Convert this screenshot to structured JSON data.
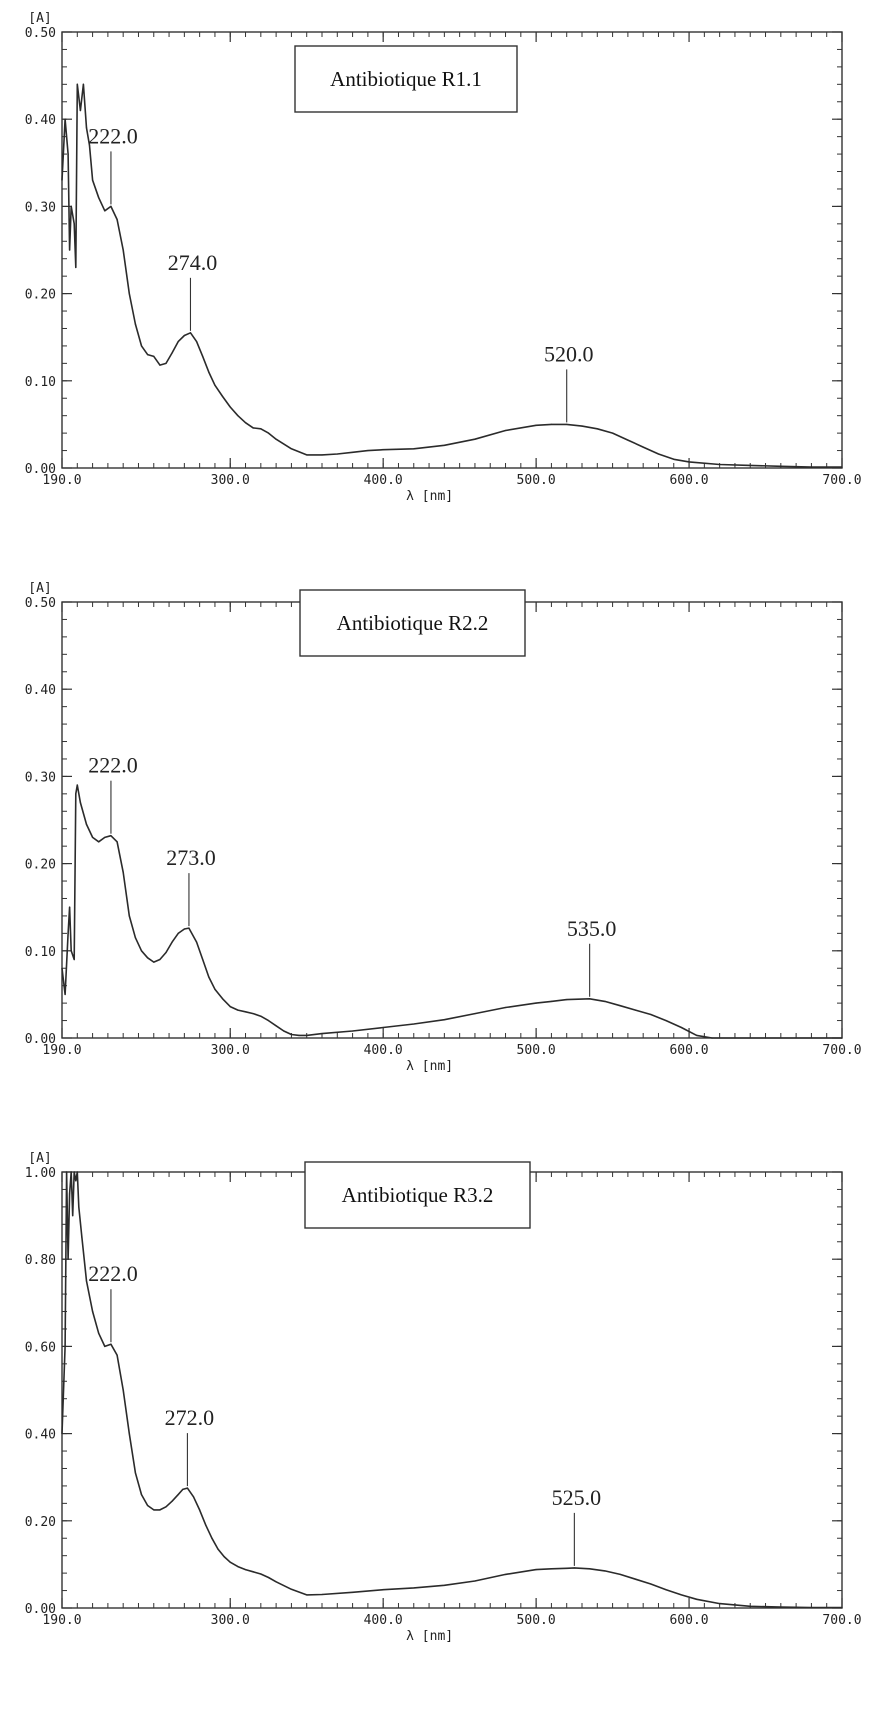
{
  "chart_data": [
    {
      "type": "line",
      "title": "Antibiotique R1.1",
      "xlabel": "λ [nm]",
      "ylabel": "[A]",
      "xlim": [
        190,
        700
      ],
      "ylim": [
        0,
        0.5
      ],
      "x_ticks": [
        190,
        300,
        400,
        500,
        600,
        700
      ],
      "x_tick_labels": [
        "190.0",
        "300.0",
        "400.0",
        "500.0",
        "600.0",
        "700.0"
      ],
      "y_ticks": [
        0,
        0.1,
        0.2,
        0.3,
        0.4,
        0.5
      ],
      "y_tick_labels": [
        "0.00",
        "0.10",
        "0.20",
        "0.30",
        "0.40",
        "0.50"
      ],
      "grid": false,
      "series": [
        {
          "x": [
            190,
            192,
            194,
            195,
            196,
            198,
            199,
            200,
            202,
            204,
            206,
            208,
            210,
            214,
            218,
            222,
            226,
            230,
            234,
            238,
            242,
            246,
            250,
            254,
            258,
            262,
            266,
            270,
            274,
            278,
            282,
            286,
            290,
            295,
            300,
            305,
            310,
            315,
            320,
            325,
            330,
            340,
            350,
            360,
            370,
            380,
            390,
            400,
            420,
            440,
            460,
            480,
            500,
            510,
            520,
            530,
            540,
            550,
            560,
            570,
            580,
            590,
            600,
            620,
            640,
            660,
            680,
            700
          ],
          "y": [
            0.33,
            0.4,
            0.36,
            0.25,
            0.3,
            0.28,
            0.23,
            0.44,
            0.41,
            0.44,
            0.39,
            0.37,
            0.33,
            0.31,
            0.295,
            0.3,
            0.285,
            0.25,
            0.2,
            0.165,
            0.14,
            0.13,
            0.128,
            0.118,
            0.12,
            0.132,
            0.145,
            0.152,
            0.155,
            0.145,
            0.128,
            0.11,
            0.095,
            0.082,
            0.07,
            0.06,
            0.052,
            0.046,
            0.045,
            0.04,
            0.033,
            0.022,
            0.015,
            0.015,
            0.016,
            0.018,
            0.02,
            0.021,
            0.022,
            0.026,
            0.033,
            0.043,
            0.049,
            0.05,
            0.05,
            0.048,
            0.045,
            0.04,
            0.032,
            0.024,
            0.016,
            0.01,
            0.007,
            0.004,
            0.003,
            0.002,
            0.001,
            0.001
          ]
        }
      ],
      "peaks": [
        {
          "x": 222,
          "y": 0.3,
          "label": "222.0"
        },
        {
          "x": 274,
          "y": 0.155,
          "label": "274.0"
        },
        {
          "x": 520,
          "y": 0.05,
          "label": "520.0"
        }
      ]
    },
    {
      "type": "line",
      "title": "Antibiotique R2.2",
      "xlabel": "λ [nm]",
      "ylabel": "[A]",
      "xlim": [
        190,
        700
      ],
      "ylim": [
        0,
        0.5
      ],
      "x_ticks": [
        190,
        300,
        400,
        500,
        600,
        700
      ],
      "x_tick_labels": [
        "190.0",
        "300.0",
        "400.0",
        "500.0",
        "600.0",
        "700.0"
      ],
      "y_ticks": [
        0,
        0.1,
        0.2,
        0.3,
        0.4,
        0.5
      ],
      "y_tick_labels": [
        "0.00",
        "0.10",
        "0.20",
        "0.30",
        "0.40",
        "0.50"
      ],
      "grid": false,
      "series": [
        {
          "x": [
            190,
            192,
            194,
            195,
            196,
            198,
            199,
            200,
            202,
            206,
            210,
            214,
            218,
            222,
            226,
            230,
            234,
            238,
            242,
            246,
            250,
            254,
            258,
            262,
            266,
            270,
            273,
            278,
            282,
            286,
            290,
            295,
            300,
            305,
            310,
            315,
            320,
            325,
            330,
            335,
            340,
            345,
            350,
            360,
            380,
            400,
            420,
            440,
            460,
            480,
            500,
            510,
            520,
            535,
            545,
            555,
            565,
            575,
            585,
            595,
            605,
            615,
            630,
            650,
            700
          ],
          "y": [
            0.08,
            0.05,
            0.12,
            0.15,
            0.1,
            0.09,
            0.28,
            0.29,
            0.27,
            0.245,
            0.23,
            0.225,
            0.23,
            0.232,
            0.225,
            0.19,
            0.14,
            0.115,
            0.1,
            0.092,
            0.087,
            0.09,
            0.098,
            0.11,
            0.12,
            0.125,
            0.126,
            0.11,
            0.09,
            0.07,
            0.056,
            0.045,
            0.036,
            0.032,
            0.03,
            0.028,
            0.025,
            0.02,
            0.014,
            0.008,
            0.004,
            0.003,
            0.003,
            0.005,
            0.008,
            0.012,
            0.016,
            0.021,
            0.028,
            0.035,
            0.04,
            0.042,
            0.044,
            0.045,
            0.042,
            0.037,
            0.032,
            0.027,
            0.02,
            0.012,
            0.003,
            0.0,
            0.0,
            0.0,
            0.0
          ]
        }
      ],
      "peaks": [
        {
          "x": 222,
          "y": 0.232,
          "label": "222.0"
        },
        {
          "x": 273,
          "y": 0.126,
          "label": "273.0"
        },
        {
          "x": 535,
          "y": 0.045,
          "label": "535.0"
        }
      ]
    },
    {
      "type": "line",
      "title": "Antibiotique R3.2",
      "xlabel": "λ [nm]",
      "ylabel": "[A]",
      "xlim": [
        190,
        700
      ],
      "ylim": [
        0,
        1.0
      ],
      "x_ticks": [
        190,
        300,
        400,
        500,
        600,
        700
      ],
      "x_tick_labels": [
        "190.0",
        "300.0",
        "400.0",
        "500.0",
        "600.0",
        "700.0"
      ],
      "y_ticks": [
        0,
        0.2,
        0.4,
        0.6,
        0.8,
        1.0
      ],
      "y_tick_labels": [
        "0.00",
        "0.20",
        "0.40",
        "0.60",
        "0.80",
        "1.00"
      ],
      "grid": false,
      "series": [
        {
          "x": [
            190,
            192,
            193,
            194,
            195,
            196,
            197,
            198,
            199,
            200,
            201,
            203,
            206,
            210,
            214,
            218,
            222,
            226,
            230,
            234,
            238,
            242,
            246,
            250,
            254,
            258,
            262,
            266,
            269,
            272,
            276,
            280,
            284,
            288,
            292,
            296,
            300,
            305,
            310,
            315,
            320,
            325,
            330,
            340,
            350,
            360,
            380,
            400,
            420,
            440,
            460,
            480,
            500,
            510,
            520,
            525,
            535,
            545,
            555,
            565,
            575,
            585,
            595,
            605,
            620,
            640,
            660,
            680,
            700
          ],
          "y": [
            0.4,
            0.6,
            1.0,
            0.8,
            0.95,
            1.0,
            0.9,
            1.0,
            0.98,
            1.0,
            0.92,
            0.85,
            0.75,
            0.68,
            0.63,
            0.6,
            0.605,
            0.58,
            0.5,
            0.4,
            0.31,
            0.26,
            0.235,
            0.225,
            0.225,
            0.232,
            0.245,
            0.26,
            0.272,
            0.275,
            0.255,
            0.225,
            0.19,
            0.16,
            0.135,
            0.118,
            0.105,
            0.095,
            0.088,
            0.083,
            0.078,
            0.07,
            0.06,
            0.043,
            0.03,
            0.031,
            0.036,
            0.042,
            0.046,
            0.052,
            0.062,
            0.077,
            0.088,
            0.09,
            0.091,
            0.092,
            0.09,
            0.085,
            0.077,
            0.066,
            0.055,
            0.042,
            0.03,
            0.02,
            0.01,
            0.004,
            0.002,
            0.001,
            0.001
          ]
        }
      ],
      "peaks": [
        {
          "x": 222,
          "y": 0.605,
          "label": "222.0"
        },
        {
          "x": 272,
          "y": 0.275,
          "label": "272.0"
        },
        {
          "x": 525,
          "y": 0.092,
          "label": "525.0"
        }
      ]
    }
  ]
}
